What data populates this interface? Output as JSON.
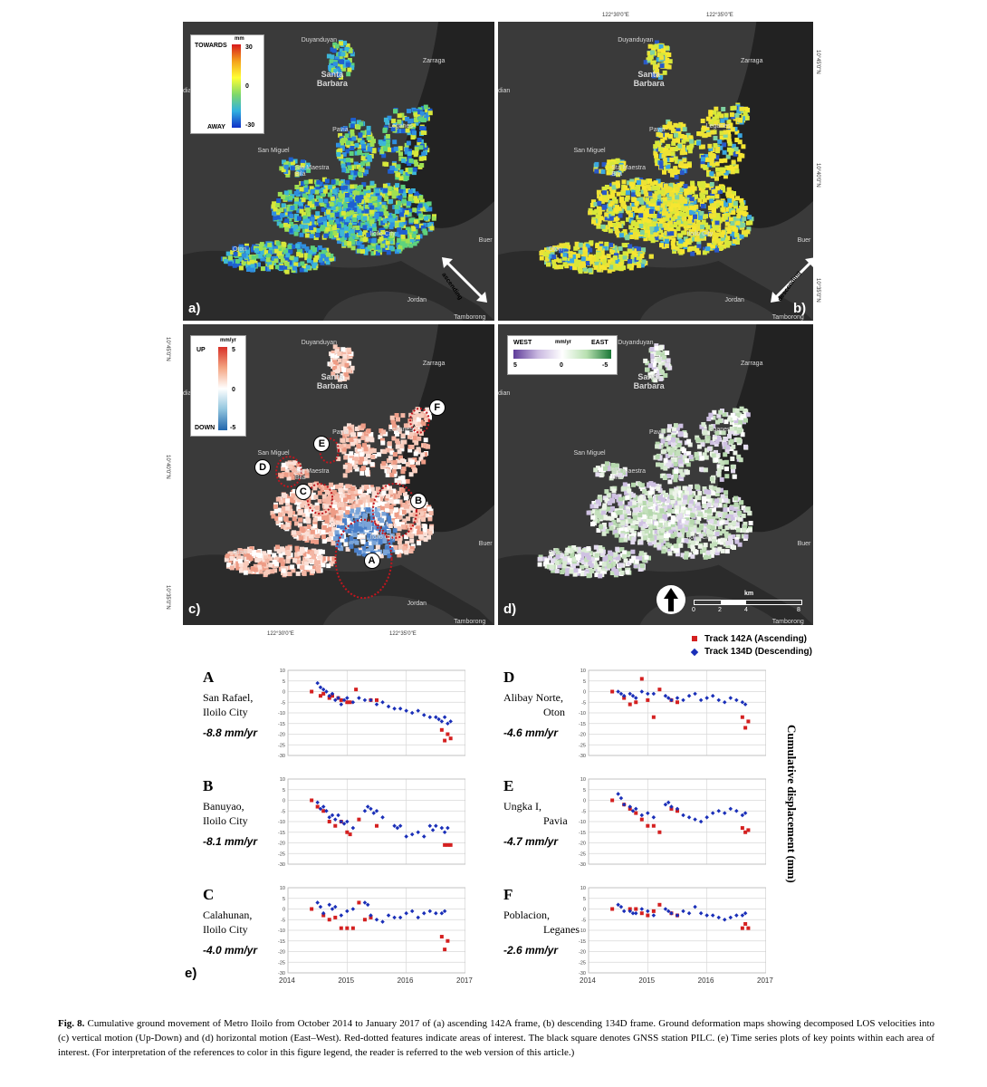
{
  "coords": {
    "top_lon_1": "122°30'0\"E",
    "top_lon_2": "122°35'0\"E",
    "bottom_lon_1": "122°30'0\"E",
    "bottom_lon_2": "122°35'0\"E",
    "lat_1": "10°45'0\"N",
    "lat_2": "10°40'0\"N",
    "lat_3": "10°35'0\"N"
  },
  "places": {
    "duyanduyan": "Duyanduyan",
    "zarraga": "Zarraga",
    "santa_barbara": "Santa\nBarbara",
    "leganes": "Leganes",
    "pavia": "Pavia",
    "san_miguel": "San Miguel",
    "sta_maestra_bila": "Sta Maestra\nBila",
    "iloilo_city": "Iloilo City",
    "oton": "Oton",
    "jordan": "Jordan",
    "buer": "Buer",
    "tamborong": "Tamborong",
    "dian": "dian"
  },
  "panels": {
    "a": {
      "label": "a)",
      "orbit": "ascending"
    },
    "b": {
      "label": "b)",
      "orbit": "descending"
    },
    "c": {
      "label": "c)"
    },
    "d": {
      "label": "d)"
    },
    "e": {
      "label": "e)"
    }
  },
  "legend_los": {
    "unit": "mm",
    "top": "TOWARDS",
    "bottom": "AWAY",
    "max": "30",
    "mid": "0",
    "min": "-30"
  },
  "legend_vert": {
    "unit": "mm/yr",
    "top": "UP",
    "bottom": "DOWN",
    "max": "5",
    "mid": "0",
    "min": "-5"
  },
  "legend_horiz": {
    "unit": "mm/yr",
    "left": "WEST",
    "right": "EAST",
    "left_val": "5",
    "mid_val": "0",
    "right_val": "-5"
  },
  "aoi_labels": [
    "A",
    "B",
    "C",
    "D",
    "E",
    "F"
  ],
  "scalebar": {
    "unit": "km",
    "ticks": [
      "0",
      "2",
      "4",
      "8"
    ]
  },
  "ts_legend": {
    "ascending": "Track 142A (Ascending)",
    "descending": "Track 134D (Descending)",
    "asc_color": "#d42020",
    "desc_color": "#1a2fb8"
  },
  "ts_ylabel": "Cumulative displacement (mm)",
  "ts_yticks": [
    "10",
    "5",
    "0",
    "-5",
    "-10",
    "-15",
    "-20",
    "-25",
    "-30"
  ],
  "ts_xticks": [
    "2014",
    "2015",
    "2016",
    "2017"
  ],
  "ts_sites": [
    {
      "letter": "A",
      "place1": "San Rafael,",
      "place2": "Iloilo  City",
      "rate": "-8.8 mm/yr"
    },
    {
      "letter": "B",
      "place1": "Banuyao,",
      "place2": "Iloilo  City",
      "rate": "-8.1 mm/yr"
    },
    {
      "letter": "C",
      "place1": "Calahunan,",
      "place2": "Iloilo  City",
      "rate": "-4.0 mm/yr"
    },
    {
      "letter": "D",
      "place1": "Alibay  Norte,",
      "place2": "Oton",
      "rate": "-4.6 mm/yr"
    },
    {
      "letter": "E",
      "place1": "Ungka I,",
      "place2": "Pavia",
      "rate": "-4.7 mm/yr"
    },
    {
      "letter": "F",
      "place1": "Poblacion,",
      "place2": "Leganes",
      "rate": "-2.6 mm/yr"
    }
  ],
  "chart_data": [
    {
      "type": "scatter",
      "site": "A",
      "xlim": [
        2014,
        2017
      ],
      "ylim": [
        -30,
        10
      ],
      "series": [
        {
          "name": "Track 142A (Ascending)",
          "x": [
            2014.4,
            2014.55,
            2014.6,
            2014.7,
            2014.75,
            2014.85,
            2014.9,
            2015.0,
            2015.05,
            2015.15,
            2015.4,
            2015.5,
            2016.6,
            2016.65,
            2016.7,
            2016.75
          ],
          "y": [
            0,
            -2,
            -1,
            -3,
            -2,
            -3,
            -4,
            -5,
            -5,
            1,
            -4,
            -4,
            -18,
            -23,
            -20,
            -22
          ]
        },
        {
          "name": "Track 134D (Descending)",
          "x": [
            2014.5,
            2014.55,
            2014.6,
            2014.65,
            2014.7,
            2014.75,
            2014.8,
            2014.85,
            2014.9,
            2014.95,
            2015.0,
            2015.1,
            2015.2,
            2015.3,
            2015.4,
            2015.5,
            2015.6,
            2015.7,
            2015.8,
            2015.9,
            2016.0,
            2016.1,
            2016.2,
            2016.3,
            2016.4,
            2016.5,
            2016.55,
            2016.6,
            2016.65,
            2016.7,
            2016.75
          ],
          "y": [
            4,
            2,
            1,
            0,
            -2,
            -1,
            -4,
            -3,
            -6,
            -4,
            -3,
            -5,
            -3,
            -4,
            -4,
            -6,
            -5,
            -7,
            -8,
            -8,
            -9,
            -10,
            -9,
            -11,
            -12,
            -12,
            -13,
            -14,
            -12,
            -15,
            -14
          ]
        }
      ]
    },
    {
      "type": "scatter",
      "site": "B",
      "xlim": [
        2014,
        2017
      ],
      "ylim": [
        -30,
        10
      ],
      "series": [
        {
          "name": "Track 142A (Ascending)",
          "x": [
            2014.4,
            2014.5,
            2014.6,
            2014.7,
            2014.8,
            2014.9,
            2015.0,
            2015.05,
            2015.2,
            2015.5,
            2016.65,
            2016.7,
            2016.75
          ],
          "y": [
            0,
            -3,
            -5,
            -10,
            -12,
            -10,
            -15,
            -16,
            -9,
            -12,
            -21,
            -21,
            -21
          ]
        },
        {
          "name": "Track 134D (Descending)",
          "x": [
            2014.5,
            2014.55,
            2014.6,
            2014.65,
            2014.7,
            2014.75,
            2014.8,
            2014.85,
            2014.9,
            2014.95,
            2015.0,
            2015.1,
            2015.3,
            2015.35,
            2015.4,
            2015.45,
            2015.5,
            2015.6,
            2015.8,
            2015.85,
            2015.9,
            2016.0,
            2016.1,
            2016.2,
            2016.3,
            2016.4,
            2016.45,
            2016.5,
            2016.6,
            2016.65,
            2016.7
          ],
          "y": [
            -1,
            -4,
            -3,
            -5,
            -8,
            -7,
            -9,
            -7,
            -10,
            -11,
            -10,
            -13,
            -5,
            -3,
            -4,
            -6,
            -5,
            -8,
            -12,
            -13,
            -12,
            -17,
            -16,
            -15,
            -17,
            -12,
            -14,
            -12,
            -13,
            -15,
            -13
          ]
        }
      ]
    },
    {
      "type": "scatter",
      "site": "C",
      "xlim": [
        2014,
        2017
      ],
      "ylim": [
        -30,
        10
      ],
      "series": [
        {
          "name": "Track 142A (Ascending)",
          "x": [
            2014.4,
            2014.6,
            2014.7,
            2014.8,
            2014.9,
            2015.0,
            2015.1,
            2015.2,
            2015.3,
            2015.4,
            2016.6,
            2016.65,
            2016.7
          ],
          "y": [
            0,
            -3,
            -5,
            -4,
            -9,
            -9,
            -9,
            3,
            -5,
            -4,
            -13,
            -19,
            -15
          ]
        },
        {
          "name": "Track 134D (Descending)",
          "x": [
            2014.5,
            2014.55,
            2014.6,
            2014.7,
            2014.75,
            2014.8,
            2014.9,
            2015.0,
            2015.1,
            2015.3,
            2015.35,
            2015.4,
            2015.5,
            2015.6,
            2015.7,
            2015.8,
            2015.9,
            2016.0,
            2016.1,
            2016.2,
            2016.3,
            2016.4,
            2016.5,
            2016.6,
            2016.65
          ],
          "y": [
            3,
            1,
            -2,
            2,
            0,
            1,
            -3,
            -1,
            0,
            3,
            2,
            -3,
            -5,
            -6,
            -3,
            -4,
            -4,
            -2,
            -1,
            -4,
            -2,
            -1,
            -2,
            -2,
            -1
          ]
        }
      ]
    },
    {
      "type": "scatter",
      "site": "D",
      "xlim": [
        2014,
        2017
      ],
      "ylim": [
        -30,
        10
      ],
      "series": [
        {
          "name": "Track 142A (Ascending)",
          "x": [
            2014.4,
            2014.6,
            2014.7,
            2014.8,
            2014.9,
            2015.0,
            2015.1,
            2015.2,
            2015.4,
            2015.5,
            2016.6,
            2016.65,
            2016.7
          ],
          "y": [
            0,
            -3,
            -6,
            -5,
            6,
            -4,
            -12,
            1,
            -4,
            -5,
            -12,
            -17,
            -14
          ]
        },
        {
          "name": "Track 134D (Descending)",
          "x": [
            2014.5,
            2014.55,
            2014.6,
            2014.7,
            2014.75,
            2014.8,
            2014.9,
            2015.0,
            2015.1,
            2015.3,
            2015.35,
            2015.4,
            2015.5,
            2015.6,
            2015.7,
            2015.8,
            2015.9,
            2016.0,
            2016.1,
            2016.2,
            2016.3,
            2016.4,
            2016.5,
            2016.6,
            2016.65
          ],
          "y": [
            0,
            -1,
            -2,
            -1,
            -2,
            -3,
            0,
            -1,
            -1,
            -2,
            -3,
            -4,
            -3,
            -4,
            -2,
            -1,
            -4,
            -3,
            -2,
            -4,
            -5,
            -3,
            -4,
            -5,
            -6
          ]
        }
      ]
    },
    {
      "type": "scatter",
      "site": "E",
      "xlim": [
        2014,
        2017
      ],
      "ylim": [
        -30,
        10
      ],
      "series": [
        {
          "name": "Track 142A (Ascending)",
          "x": [
            2014.4,
            2014.6,
            2014.7,
            2014.8,
            2014.9,
            2015.0,
            2015.1,
            2015.2,
            2015.4,
            2015.5,
            2016.6,
            2016.65,
            2016.7
          ],
          "y": [
            0,
            -2,
            -4,
            -6,
            -9,
            -12,
            -12,
            -15,
            -4,
            -5,
            -13,
            -15,
            -14
          ]
        },
        {
          "name": "Track 134D (Descending)",
          "x": [
            2014.5,
            2014.55,
            2014.6,
            2014.7,
            2014.75,
            2014.8,
            2014.9,
            2015.0,
            2015.1,
            2015.3,
            2015.35,
            2015.4,
            2015.5,
            2015.6,
            2015.7,
            2015.8,
            2015.9,
            2016.0,
            2016.1,
            2016.2,
            2016.3,
            2016.4,
            2016.5,
            2016.6,
            2016.65
          ],
          "y": [
            3,
            1,
            -2,
            -3,
            -5,
            -4,
            -7,
            -6,
            -8,
            -2,
            -1,
            -3,
            -4,
            -7,
            -8,
            -9,
            -10,
            -8,
            -6,
            -5,
            -6,
            -4,
            -5,
            -7,
            -6
          ]
        }
      ]
    },
    {
      "type": "scatter",
      "site": "F",
      "xlim": [
        2014,
        2017
      ],
      "ylim": [
        -30,
        10
      ],
      "series": [
        {
          "name": "Track 142A (Ascending)",
          "x": [
            2014.4,
            2014.7,
            2014.8,
            2014.9,
            2015.0,
            2015.1,
            2015.2,
            2015.4,
            2015.5,
            2016.6,
            2016.65,
            2016.7
          ],
          "y": [
            0,
            0,
            0,
            -2,
            -3,
            -1,
            2,
            -2,
            -3,
            -9,
            -7,
            -9
          ]
        },
        {
          "name": "Track 134D (Descending)",
          "x": [
            2014.5,
            2014.55,
            2014.6,
            2014.7,
            2014.75,
            2014.8,
            2014.9,
            2015.0,
            2015.1,
            2015.3,
            2015.35,
            2015.4,
            2015.5,
            2015.6,
            2015.7,
            2015.8,
            2015.9,
            2016.0,
            2016.1,
            2016.2,
            2016.3,
            2016.4,
            2016.5,
            2016.6,
            2016.65
          ],
          "y": [
            2,
            1,
            -1,
            -1,
            -2,
            -2,
            0,
            -1,
            -3,
            0,
            -1,
            -2,
            -3,
            -1,
            -2,
            1,
            -2,
            -3,
            -3,
            -4,
            -5,
            -4,
            -3,
            -3,
            -2
          ]
        }
      ]
    }
  ],
  "caption": {
    "label": "Fig. 8.",
    "text": "Cumulative ground movement of Metro Iloilo from October 2014 to January 2017 of (a) ascending 142A frame, (b) descending 134D frame. Ground deformation maps showing decomposed LOS velocities into (c) vertical motion (Up-Down) and (d) horizontal motion (East–West). Red-dotted features indicate areas of interest. The black square denotes GNSS station PILC. (e) Time series plots of key points within each area of interest.  (For interpretation of the references to color in this figure legend, the reader is referred to the web version of this article.)"
  }
}
